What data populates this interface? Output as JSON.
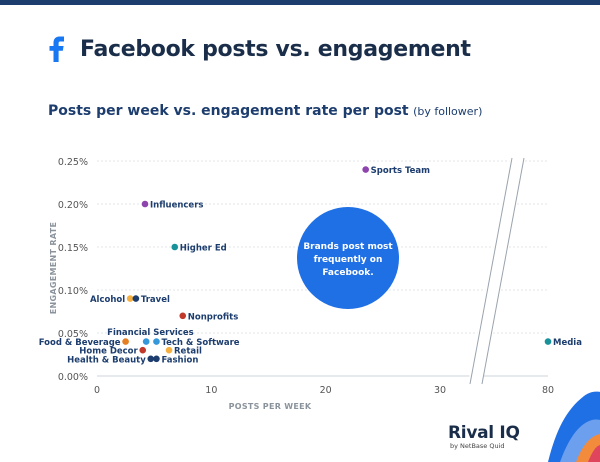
{
  "header": {
    "title": "Facebook posts vs. engagement",
    "subtitle_main": "Posts per week vs. engagement rate per post",
    "subtitle_note": "(by follower)",
    "icon": "facebook-icon"
  },
  "chart_data": {
    "type": "scatter",
    "xlabel": "POSTS PER WEEK",
    "ylabel": "ENGAGEMENT RATE",
    "x_ticks": [
      "0",
      "10",
      "20",
      "30",
      "80"
    ],
    "y_ticks": [
      "0.00%",
      "0.05%",
      "0.10%",
      "0.15%",
      "0.20%",
      "0.25%"
    ],
    "xlim": [
      0,
      80
    ],
    "x_axis_break": [
      33,
      79
    ],
    "ylim": [
      0,
      0.25
    ],
    "grid": true,
    "annotation": "Brands post most frequently on Facebook.",
    "points": [
      {
        "label": "Sports Team",
        "x": 23.5,
        "y": 0.24,
        "color": "#8e44ad"
      },
      {
        "label": "Influencers",
        "x": 4.2,
        "y": 0.2,
        "color": "#8e44ad"
      },
      {
        "label": "Higher Ed",
        "x": 6.8,
        "y": 0.15,
        "color": "#17929a"
      },
      {
        "label": "Alcohol",
        "x": 2.9,
        "y": 0.09,
        "color": "#f5b041"
      },
      {
        "label": "Travel",
        "x": 3.4,
        "y": 0.09,
        "color": "#1c3d6e"
      },
      {
        "label": "Nonprofits",
        "x": 7.5,
        "y": 0.07,
        "color": "#c0392b"
      },
      {
        "label": "Financial Services",
        "x": 4.3,
        "y": 0.04,
        "color": "#3498db"
      },
      {
        "label": "Food & Beverage",
        "x": 2.5,
        "y": 0.04,
        "color": "#e67e22"
      },
      {
        "label": "Tech & Software",
        "x": 5.2,
        "y": 0.04,
        "color": "#3498db"
      },
      {
        "label": "Home Decor",
        "x": 4.0,
        "y": 0.03,
        "color": "#c0392b"
      },
      {
        "label": "Retail",
        "x": 6.3,
        "y": 0.03,
        "color": "#f5b041"
      },
      {
        "label": "Health & Beauty",
        "x": 4.7,
        "y": 0.02,
        "color": "#1c3d6e"
      },
      {
        "label": "Fashion",
        "x": 5.2,
        "y": 0.02,
        "color": "#1c3d6e"
      },
      {
        "label": "Media",
        "x": 80,
        "y": 0.04,
        "color": "#17929a"
      }
    ]
  },
  "logo": {
    "name": "Rival IQ",
    "tagline": "by NetBase Quid"
  },
  "colors": {
    "accent": "#1c3d6e",
    "bubble": "#1f6fe5",
    "facebook": "#1877f2"
  }
}
